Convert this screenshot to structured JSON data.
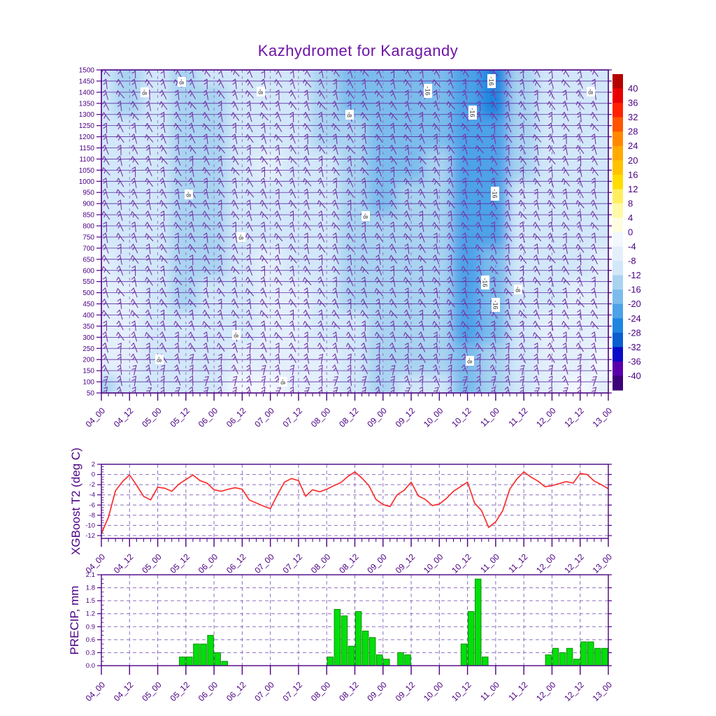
{
  "title": "Kazhydromet for Karagandy",
  "colors": {
    "title": "#6e14a6",
    "axis_text": "#4b0082",
    "frame": "#4b0082",
    "level_line": "#5a2ca0",
    "dash_grid": "#8d6fc0",
    "wind_barb": "#7a35a8",
    "t2_line": "#fa2e2e",
    "precip_fill": "#00e00a",
    "precip_edge": "#009000",
    "contour_label_text": "#333333"
  },
  "time_axis": {
    "major_labels": [
      "04_00",
      "04_12",
      "05_00",
      "05_12",
      "06_00",
      "06_12",
      "07_00",
      "07_12",
      "08_00",
      "08_12",
      "09_00",
      "09_12",
      "10_00",
      "10_12",
      "11_00",
      "11_12",
      "12_00",
      "12_12",
      "13_00"
    ],
    "all_times_3h": [
      "04_00",
      "04_03",
      "04_06",
      "04_09",
      "04_12",
      "04_15",
      "04_18",
      "04_21",
      "05_00",
      "05_03",
      "05_06",
      "05_09",
      "05_12",
      "05_15",
      "05_18",
      "05_21",
      "06_00",
      "06_03",
      "06_06",
      "06_09",
      "06_12",
      "06_15",
      "06_18",
      "06_21",
      "07_00",
      "07_03",
      "07_06",
      "07_09",
      "07_12",
      "07_15",
      "07_18",
      "07_21",
      "08_00",
      "08_03",
      "08_06",
      "08_09",
      "08_12",
      "08_15",
      "08_18",
      "08_21",
      "09_00",
      "09_03",
      "09_06",
      "09_09",
      "09_12",
      "09_15",
      "09_18",
      "09_21",
      "10_00",
      "10_03",
      "10_06",
      "10_09",
      "10_12",
      "10_15",
      "10_18",
      "10_21",
      "11_00",
      "11_03",
      "11_06",
      "11_09",
      "11_12",
      "11_15",
      "11_18",
      "11_21",
      "12_00",
      "12_03",
      "12_06",
      "12_09",
      "12_12",
      "12_15",
      "12_18",
      "12_21",
      "13_00"
    ]
  },
  "chart_data": [
    {
      "type": "heatmap",
      "title": "Kazhydromet for Karagandy",
      "units": "deg C",
      "wind_barbs": true,
      "legend_position": "right",
      "y_axis_ticks": [
        1500,
        1450,
        1400,
        1350,
        1300,
        1250,
        1200,
        1150,
        1100,
        1050,
        1000,
        950,
        900,
        850,
        800,
        750,
        700,
        650,
        600,
        550,
        500,
        450,
        400,
        350,
        300,
        250,
        200,
        150,
        100,
        50
      ],
      "x": [
        "04_00",
        "04_12",
        "05_00",
        "05_12",
        "06_00",
        "06_12",
        "07_00",
        "07_12",
        "08_00",
        "08_12",
        "09_00",
        "09_12",
        "10_00",
        "10_12",
        "11_00",
        "11_12",
        "12_00",
        "12_12",
        "13_00"
      ],
      "y": [
        1500,
        1355,
        1210,
        1065,
        920,
        775,
        630,
        485,
        340,
        195,
        50
      ],
      "values": [
        [
          -10,
          -13,
          -10,
          -13,
          -11,
          -10,
          -10,
          -11,
          -13,
          -17,
          -18,
          -17,
          -17,
          -23,
          -25,
          -13,
          -11,
          -8,
          -9
        ],
        [
          -9,
          -12,
          -10,
          -14,
          -12,
          -10,
          -10,
          -11,
          -12,
          -16,
          -17,
          -17,
          -16,
          -22,
          -24,
          -12,
          -11,
          -9,
          -9
        ],
        [
          -9,
          -10,
          -10,
          -14,
          -12,
          -10,
          -10,
          -10,
          -12,
          -15,
          -17,
          -16,
          -16,
          -22,
          -23,
          -12,
          -10,
          -9,
          -9
        ],
        [
          -9,
          -9,
          -10,
          -14,
          -13,
          -10,
          -7,
          -10,
          -11,
          -14,
          -16,
          -16,
          -15,
          -21,
          -22,
          -12,
          -10,
          -9,
          -9
        ],
        [
          -8,
          -9,
          -10,
          -13,
          -13,
          -10,
          -9,
          -10,
          -11,
          -14,
          -16,
          -15,
          -15,
          -21,
          -21,
          -11,
          -10,
          -9,
          -8
        ],
        [
          -8,
          -8,
          -10,
          -13,
          -13,
          -9,
          -8,
          -9,
          -10,
          -13,
          -15,
          -15,
          -14,
          -21,
          -20,
          -11,
          -9,
          -8,
          -8
        ],
        [
          -7,
          -8,
          -9,
          -13,
          -12,
          -9,
          -7,
          -8,
          -10,
          -13,
          -15,
          -14,
          -14,
          -21,
          -19,
          -11,
          -9,
          -8,
          -7
        ],
        [
          -6,
          -7,
          -9,
          -12,
          -11,
          -8,
          -7,
          -7,
          -9,
          -12,
          -14,
          -14,
          -13,
          -21,
          -18,
          -10,
          -8,
          -7,
          -6
        ],
        [
          -5,
          -7,
          -8,
          -11,
          -10,
          -8,
          -6,
          -7,
          -8,
          -11,
          -13,
          -13,
          -13,
          -20,
          -16,
          -9,
          -7,
          -6,
          -5
        ],
        [
          -4,
          -6,
          -8,
          -10,
          -9,
          -7,
          -6,
          -6,
          -7,
          -10,
          -12,
          -12,
          -12,
          -18,
          -14,
          -8,
          -6,
          -4,
          -3
        ],
        [
          -13,
          -8,
          -9,
          -10,
          -8,
          -3,
          -3,
          -5,
          -7,
          -10,
          -12,
          -11,
          -11,
          -16,
          -13,
          -8,
          -5,
          -3,
          -4
        ]
      ],
      "colorbar_ticks": [
        40,
        36,
        32,
        28,
        24,
        20,
        16,
        12,
        8,
        4,
        0,
        -4,
        -8,
        -12,
        -16,
        -20,
        -24,
        -28,
        -32,
        -36,
        -40
      ],
      "colorbar_colors": [
        "#b40000",
        "#e80000",
        "#ff2200",
        "#ff5500",
        "#ff8800",
        "#ffaa00",
        "#ffc300",
        "#ffdd00",
        "#ffef60",
        "#fff9a8",
        "#fffde0",
        "#f2f8fe",
        "#e3effb",
        "#d2e7f9",
        "#a9d3f1",
        "#7cbcec",
        "#4da2e8",
        "#1f86e0",
        "#0a5fd0",
        "#0a0ac8",
        "#5a00aa",
        "#3c0078"
      ],
      "contour_labels": [
        {
          "x": 207,
          "y": 132,
          "t": "-8"
        },
        {
          "x": 260,
          "y": 117,
          "t": "-8"
        },
        {
          "x": 373,
          "y": 131,
          "t": "-8"
        },
        {
          "x": 500,
          "y": 164,
          "t": "-8"
        },
        {
          "x": 612,
          "y": 130,
          "t": "-16"
        },
        {
          "x": 703,
          "y": 116,
          "t": "-16"
        },
        {
          "x": 676,
          "y": 161,
          "t": "-16"
        },
        {
          "x": 845,
          "y": 131,
          "t": "-8"
        },
        {
          "x": 270,
          "y": 278,
          "t": "-8"
        },
        {
          "x": 523,
          "y": 309,
          "t": "-8"
        },
        {
          "x": 345,
          "y": 339,
          "t": "-8"
        },
        {
          "x": 708,
          "y": 277,
          "t": "-16"
        },
        {
          "x": 338,
          "y": 479,
          "t": "-8"
        },
        {
          "x": 694,
          "y": 404,
          "t": "-16"
        },
        {
          "x": 709,
          "y": 436,
          "t": "-16"
        },
        {
          "x": 741,
          "y": 414,
          "t": "-8"
        },
        {
          "x": 228,
          "y": 514,
          "t": "-8"
        },
        {
          "x": 672,
          "y": 516,
          "t": "-8"
        },
        {
          "x": 405,
          "y": 546,
          "t": "-8"
        }
      ]
    },
    {
      "type": "line",
      "ylabel": "XGBoost T2 (deg C)",
      "ylim": [
        -12,
        2
      ],
      "y_ticks": [
        2,
        0,
        -2,
        -4,
        -6,
        -8,
        -10,
        -12
      ],
      "color": "#fa2e2e",
      "grid": true,
      "values": [
        -11.6,
        -8.4,
        -3.2,
        -1.4,
        -0.1,
        -2.1,
        -4.3,
        -5.0,
        -2.5,
        -2.7,
        -3.3,
        -1.9,
        -1.0,
        -0.1,
        -1.2,
        -1.7,
        -3.0,
        -3.3,
        -2.9,
        -2.6,
        -2.9,
        -5.0,
        -5.6,
        -6.2,
        -6.7,
        -4.0,
        -1.5,
        -0.8,
        -1.2,
        -4.3,
        -3.0,
        -3.4,
        -2.9,
        -2.2,
        -1.6,
        -0.4,
        0.5,
        -0.7,
        -2.2,
        -4.9,
        -5.9,
        -6.3,
        -4.0,
        -3.1,
        -1.5,
        -4.2,
        -4.9,
        -6.1,
        -5.8,
        -4.7,
        -3.3,
        -2.4,
        -1.5,
        -5.6,
        -7.1,
        -10.4,
        -9.3,
        -7.1,
        -2.9,
        -0.9,
        0.5,
        -0.5,
        -1.3,
        -2.4,
        -2.2,
        -1.8,
        -1.4,
        -1.7,
        0.2,
        0.0,
        -1.3,
        -2.0,
        -2.8
      ]
    },
    {
      "type": "bar",
      "ylabel": "PRECIP, mm",
      "ylim": [
        0,
        2.1
      ],
      "y_ticks": [
        2.1,
        1.8,
        1.5,
        1.2,
        0.9,
        0.6,
        0.3,
        0.0
      ],
      "color": "#00e00a",
      "grid": true,
      "values": [
        0,
        0,
        0,
        0,
        0,
        0,
        0,
        0,
        0,
        0,
        0,
        0.2,
        0.2,
        0.5,
        0.5,
        0.7,
        0.3,
        0.1,
        0,
        0,
        0,
        0,
        0,
        0,
        0,
        0,
        0,
        0,
        0,
        0,
        0,
        0,
        0.2,
        1.3,
        1.15,
        0.45,
        1.25,
        0.8,
        0.65,
        0.25,
        0.15,
        0,
        0.3,
        0.25,
        0,
        0,
        0,
        0,
        0,
        0,
        0,
        0.5,
        1.25,
        2.0,
        0.2,
        0,
        0,
        0,
        0,
        0,
        0,
        0,
        0,
        0.25,
        0.4,
        0.3,
        0.4,
        0.15,
        0.55,
        0.55,
        0.4,
        0.4,
        0.25
      ]
    }
  ]
}
